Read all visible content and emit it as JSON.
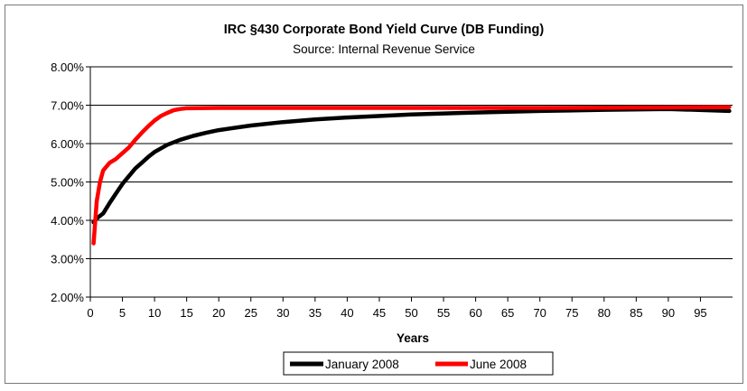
{
  "chart_data": {
    "type": "line",
    "title": "IRC §430 Corporate Bond Yield Curve (DB Funding)",
    "subtitle": "Source: Internal Revenue Service",
    "xlabel": "Years",
    "ylabel": "",
    "xlim": [
      0,
      100
    ],
    "ylim": [
      0.02,
      0.08
    ],
    "grid": "horizontal",
    "legend": "bottom",
    "x_ticks": [
      "0",
      "5",
      "10",
      "15",
      "20",
      "25",
      "30",
      "35",
      "40",
      "45",
      "50",
      "55",
      "60",
      "65",
      "70",
      "75",
      "80",
      "85",
      "90",
      "95"
    ],
    "y_ticks": [
      "2.00%",
      "3.00%",
      "4.00%",
      "5.00%",
      "6.00%",
      "7.00%",
      "8.00%"
    ],
    "series": [
      {
        "name": "January 2008",
        "color": "#000000",
        "x": [
          0.5,
          1,
          2,
          3,
          4,
          5,
          6,
          7,
          8,
          9,
          10,
          12,
          14,
          16,
          18,
          20,
          25,
          30,
          35,
          40,
          50,
          60,
          70,
          80,
          90,
          99.5
        ],
        "y": [
          0.0395,
          0.0405,
          0.0418,
          0.0445,
          0.047,
          0.0495,
          0.0515,
          0.0535,
          0.055,
          0.0565,
          0.0578,
          0.0597,
          0.061,
          0.062,
          0.0628,
          0.0635,
          0.0647,
          0.0656,
          0.0663,
          0.0668,
          0.0676,
          0.0681,
          0.0685,
          0.0688,
          0.069,
          0.0685
        ]
      },
      {
        "name": "June 2008",
        "color": "#ff0000",
        "x": [
          0.5,
          1,
          1.5,
          2,
          3,
          4,
          5,
          6,
          7,
          8,
          9,
          10,
          11,
          12,
          13,
          14,
          15,
          20,
          30,
          50,
          70,
          90,
          99.5
        ],
        "y": [
          0.034,
          0.045,
          0.05,
          0.053,
          0.055,
          0.056,
          0.0575,
          0.059,
          0.061,
          0.0628,
          0.0645,
          0.066,
          0.0672,
          0.068,
          0.0687,
          0.069,
          0.0692,
          0.0693,
          0.0693,
          0.0693,
          0.0693,
          0.0694,
          0.0695
        ]
      }
    ]
  }
}
